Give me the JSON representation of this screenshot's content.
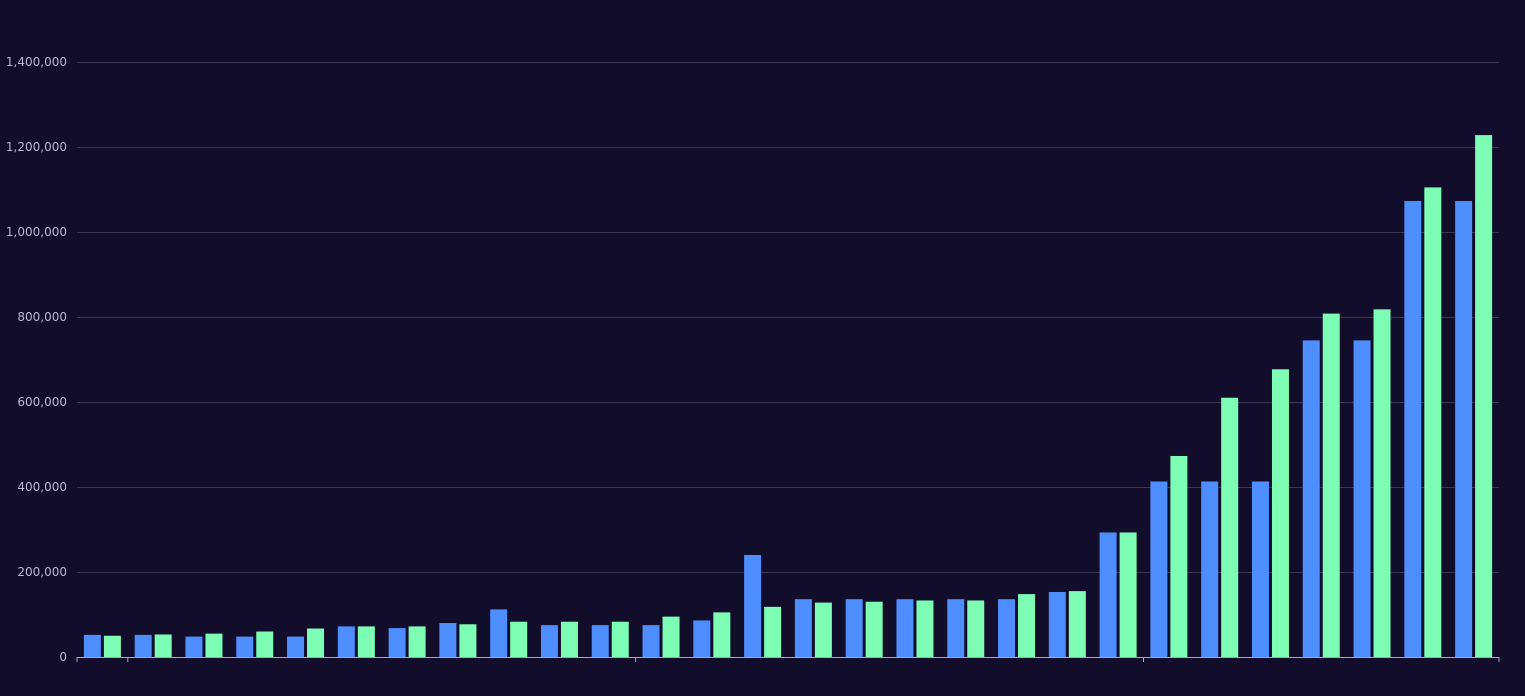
{
  "chart_data": {
    "type": "bar",
    "title": "",
    "xlabel": "",
    "ylabel": "",
    "ylim": [
      0,
      1400000
    ],
    "yticks": [
      "0",
      "200,000",
      "400,000",
      "600,000",
      "800,000",
      "1,000,000",
      "1,200,000",
      "1,400,000"
    ],
    "grid": true,
    "legend": "none",
    "categories": [
      "",
      "",
      "",
      "",
      "",
      "",
      "",
      "",
      "",
      "",
      "",
      "",
      "",
      "",
      "",
      "",
      "",
      "",
      "",
      "",
      "",
      "",
      "",
      "",
      "",
      "",
      "",
      ""
    ],
    "series": [
      {
        "color": "#4d8dfd",
        "values": [
          52000,
          52000,
          48000,
          48000,
          48000,
          72000,
          68000,
          80000,
          112000,
          75000,
          75000,
          75000,
          86000,
          240000,
          136000,
          136000,
          136000,
          136000,
          136000,
          153000,
          293000,
          413000,
          413000,
          413000,
          745000,
          745000,
          1073000,
          1073000
        ]
      },
      {
        "color": "#7dfdb4",
        "values": [
          50000,
          53000,
          55000,
          60000,
          67000,
          72000,
          72000,
          77000,
          83000,
          83000,
          83000,
          95000,
          105000,
          118000,
          128000,
          130000,
          133000,
          133000,
          148000,
          155000,
          293000,
          473000,
          610000,
          677000,
          808000,
          818000,
          1105000,
          1228000
        ]
      }
    ],
    "colors": {
      "background": "#120d2b",
      "grid": "#3a3656",
      "axis": "#a9a6c4",
      "tick_label": "#b9b6cf"
    }
  }
}
